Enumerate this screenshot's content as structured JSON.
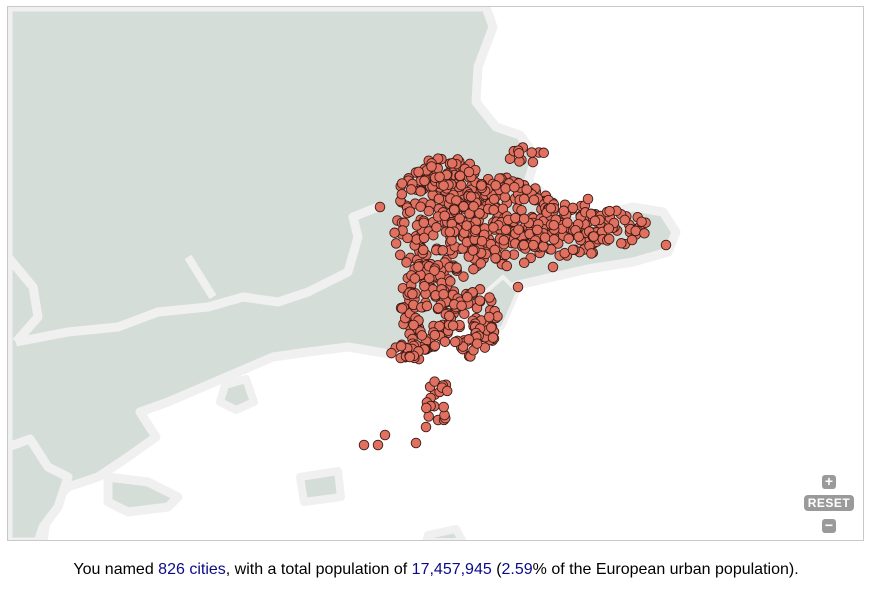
{
  "map": {
    "land_color": "#d5ddd9",
    "border_color": "#f0f0f0",
    "sea_color": "#ffffff",
    "marker_fill": "#e07060",
    "marker_stroke": "#3a1a14",
    "controls": {
      "zoom_in_label": "+",
      "reset_label": "RESET",
      "zoom_out_label": "−"
    }
  },
  "summary": {
    "prefix": "You named ",
    "cities_count": "826 cities",
    "middle": ", with a total population of ",
    "population": "17,457,945",
    "open_paren": " (",
    "percent": "2.59",
    "suffix": "% of the European urban population)."
  }
}
